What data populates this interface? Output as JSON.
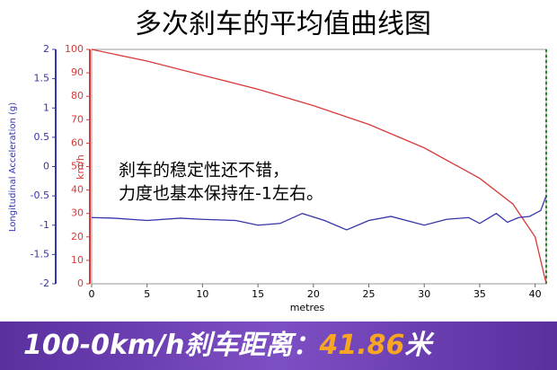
{
  "chart_data": {
    "type": "line",
    "title": "多次刹车的平均值曲线图",
    "xlabel": "metres",
    "ylabel": "km/h",
    "y2label": "Longitudinal Acceleration (g)",
    "xlim": [
      0,
      41
    ],
    "xticks": [
      0,
      5,
      10,
      15,
      20,
      25,
      30,
      35,
      40
    ],
    "ylim": [
      0,
      100
    ],
    "yticks": [
      0,
      10,
      20,
      30,
      40,
      50,
      60,
      70,
      80,
      90,
      100
    ],
    "y2lim": [
      -2,
      2
    ],
    "y2ticks": [
      2,
      1.5,
      1,
      0.5,
      0,
      -0.5,
      -1,
      -1.5,
      -2
    ],
    "series": [
      {
        "color": "#d83a3a",
        "x": [
          0,
          5,
          10,
          15,
          20,
          25,
          30,
          35,
          38,
          40,
          41
        ],
        "values": [
          100,
          95,
          89,
          83,
          76,
          68,
          58,
          45,
          34,
          20,
          0
        ]
      },
      {
        "color": "#3535a8",
        "axis": "y2",
        "x": [
          0,
          2,
          5,
          8,
          10,
          13,
          15,
          17,
          19,
          21,
          23,
          25,
          27,
          29,
          30,
          32,
          34,
          35,
          36.5,
          37.5,
          38.5,
          39.5,
          40,
          40.5,
          41
        ],
        "values": [
          -0.87,
          -0.88,
          -0.92,
          -0.88,
          -0.9,
          -0.92,
          -1.0,
          -0.97,
          -0.8,
          -0.92,
          -1.08,
          -0.92,
          -0.85,
          -0.95,
          -1.0,
          -0.9,
          -0.87,
          -0.97,
          -0.8,
          -0.95,
          -0.87,
          -0.85,
          -0.8,
          -0.75,
          -0.5
        ]
      }
    ],
    "annotation": [
      "刹车的稳定性还不错，",
      "力度也基本保持在-1左右。"
    ]
  },
  "banner": {
    "label": "100-0km/h刹车距离：",
    "value": "41.86",
    "unit": "米"
  }
}
